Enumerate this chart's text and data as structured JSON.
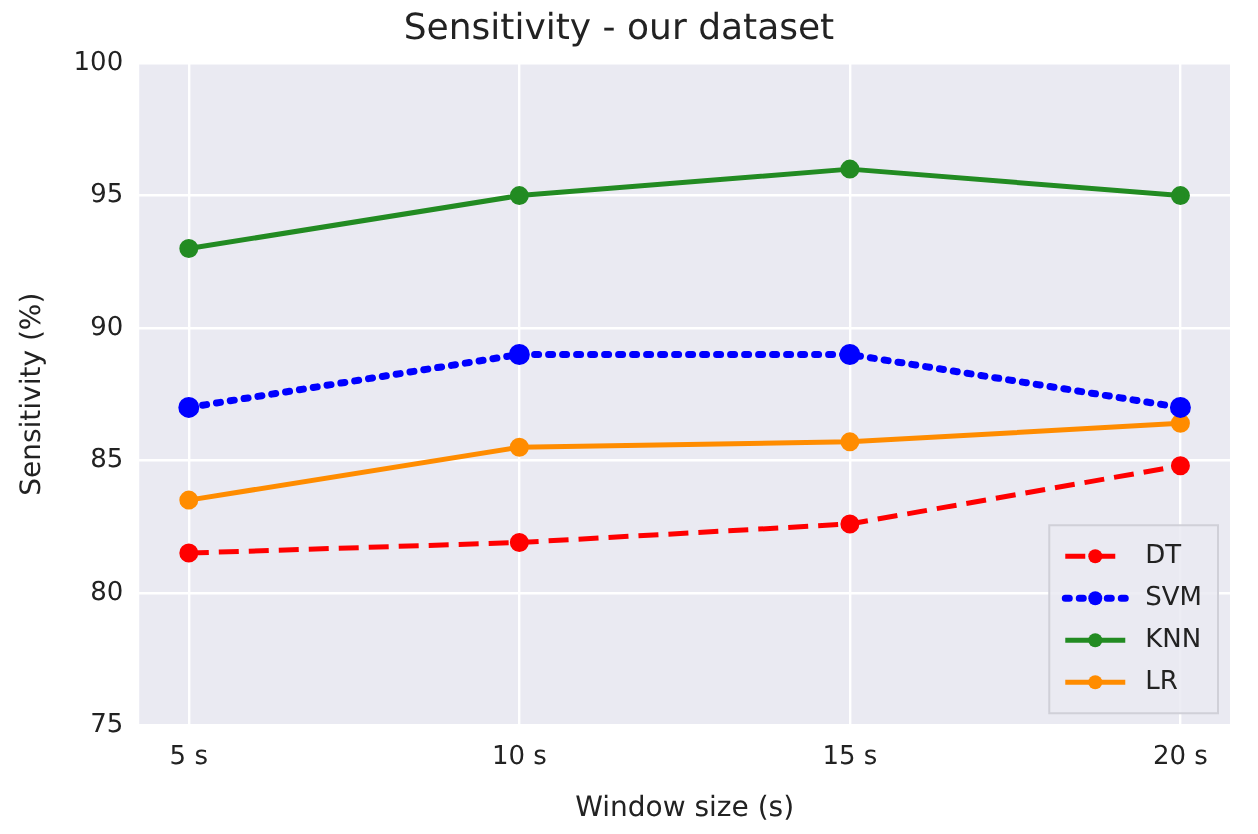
{
  "chart_data": {
    "type": "line",
    "title": "Sensitivity - our dataset",
    "xlabel": "Window size (s)",
    "ylabel": "Sensitivity (%)",
    "categories": [
      "5 s",
      "10 s",
      "15 s",
      "20 s"
    ],
    "series": [
      {
        "name": "DT",
        "color": "#ff0000",
        "line_style": "dashed",
        "values": [
          81.5,
          81.9,
          82.6,
          84.8
        ]
      },
      {
        "name": "SVM",
        "color": "#0000ff",
        "line_style": "dotted",
        "values": [
          87,
          89,
          89,
          87
        ]
      },
      {
        "name": "KNN",
        "color": "#228b22",
        "line_style": "solid",
        "values": [
          93,
          95,
          96,
          95
        ]
      },
      {
        "name": "LR",
        "color": "#ff8c00",
        "line_style": "solid",
        "values": [
          83.5,
          85.5,
          85.7,
          86.4
        ]
      }
    ],
    "ylim": [
      75,
      100
    ],
    "yticks": [
      75,
      80,
      85,
      90,
      95,
      100
    ],
    "grid": true,
    "legend": "bottom right",
    "marker": "circle"
  }
}
